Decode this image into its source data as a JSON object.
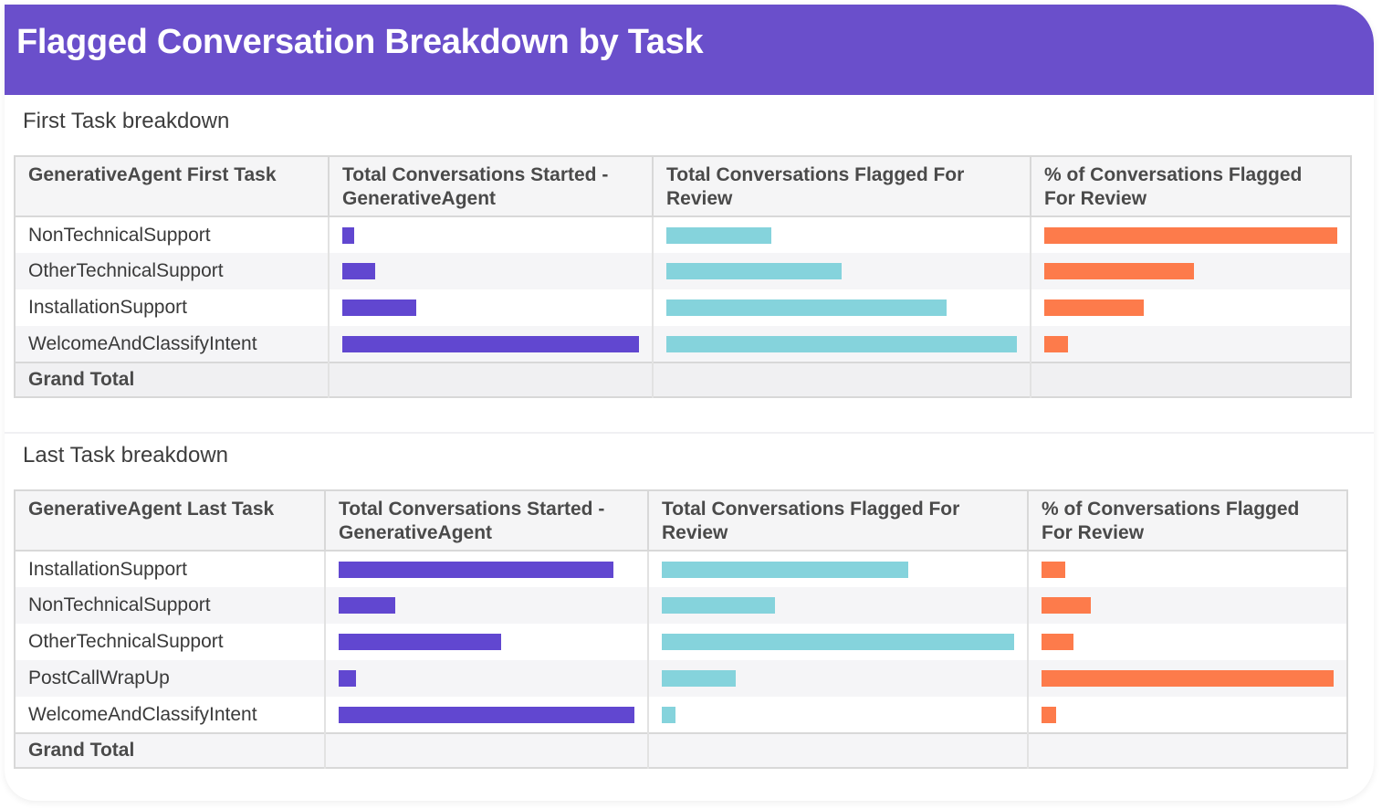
{
  "header": {
    "title": "Flagged Conversation Breakdown by Task"
  },
  "colors": {
    "header_bg": "#6a4fcb",
    "started": "#6147d0",
    "flagged": "#85d3dc",
    "percent": "#fd7b4b"
  },
  "chart_data": [
    {
      "type": "table",
      "title": "First Task breakdown",
      "columns": [
        "GenerativeAgent First Task",
        "Total Conversations Started - GenerativeAgent",
        "Total Conversations Flagged For Review",
        "% of Conversations Flagged For Review"
      ],
      "categories": [
        "NonTechnicalSupport",
        "OtherTechnicalSupport",
        "InstallationSupport",
        "WelcomeAndClassifyIntent"
      ],
      "series": [
        {
          "name": "Total Conversations Started - GenerativeAgent",
          "values": [
            0.04,
            0.11,
            0.25,
            1.0
          ]
        },
        {
          "name": "Total Conversations Flagged For Review",
          "values": [
            0.3,
            0.5,
            0.8,
            1.0
          ]
        },
        {
          "name": "% of Conversations Flagged For Review",
          "values": [
            1.0,
            0.51,
            0.34,
            0.08
          ]
        }
      ],
      "total_label": "Grand Total"
    },
    {
      "type": "table",
      "title": "Last Task breakdown",
      "columns": [
        "GenerativeAgent Last Task",
        "Total Conversations Started - GenerativeAgent",
        "Total Conversations Flagged For Review",
        "% of Conversations Flagged For Review"
      ],
      "categories": [
        "InstallationSupport",
        "NonTechnicalSupport",
        "OtherTechnicalSupport",
        "PostCallWrapUp",
        "WelcomeAndClassifyIntent"
      ],
      "series": [
        {
          "name": "Total Conversations Started - GenerativeAgent",
          "values": [
            0.93,
            0.19,
            0.55,
            0.06,
            1.0
          ]
        },
        {
          "name": "Total Conversations Flagged For Review",
          "values": [
            0.7,
            0.32,
            1.0,
            0.21,
            0.04
          ]
        },
        {
          "name": "% of Conversations Flagged For Review",
          "values": [
            0.08,
            0.17,
            0.11,
            1.0,
            0.05
          ]
        }
      ],
      "total_label": "Grand Total"
    }
  ]
}
